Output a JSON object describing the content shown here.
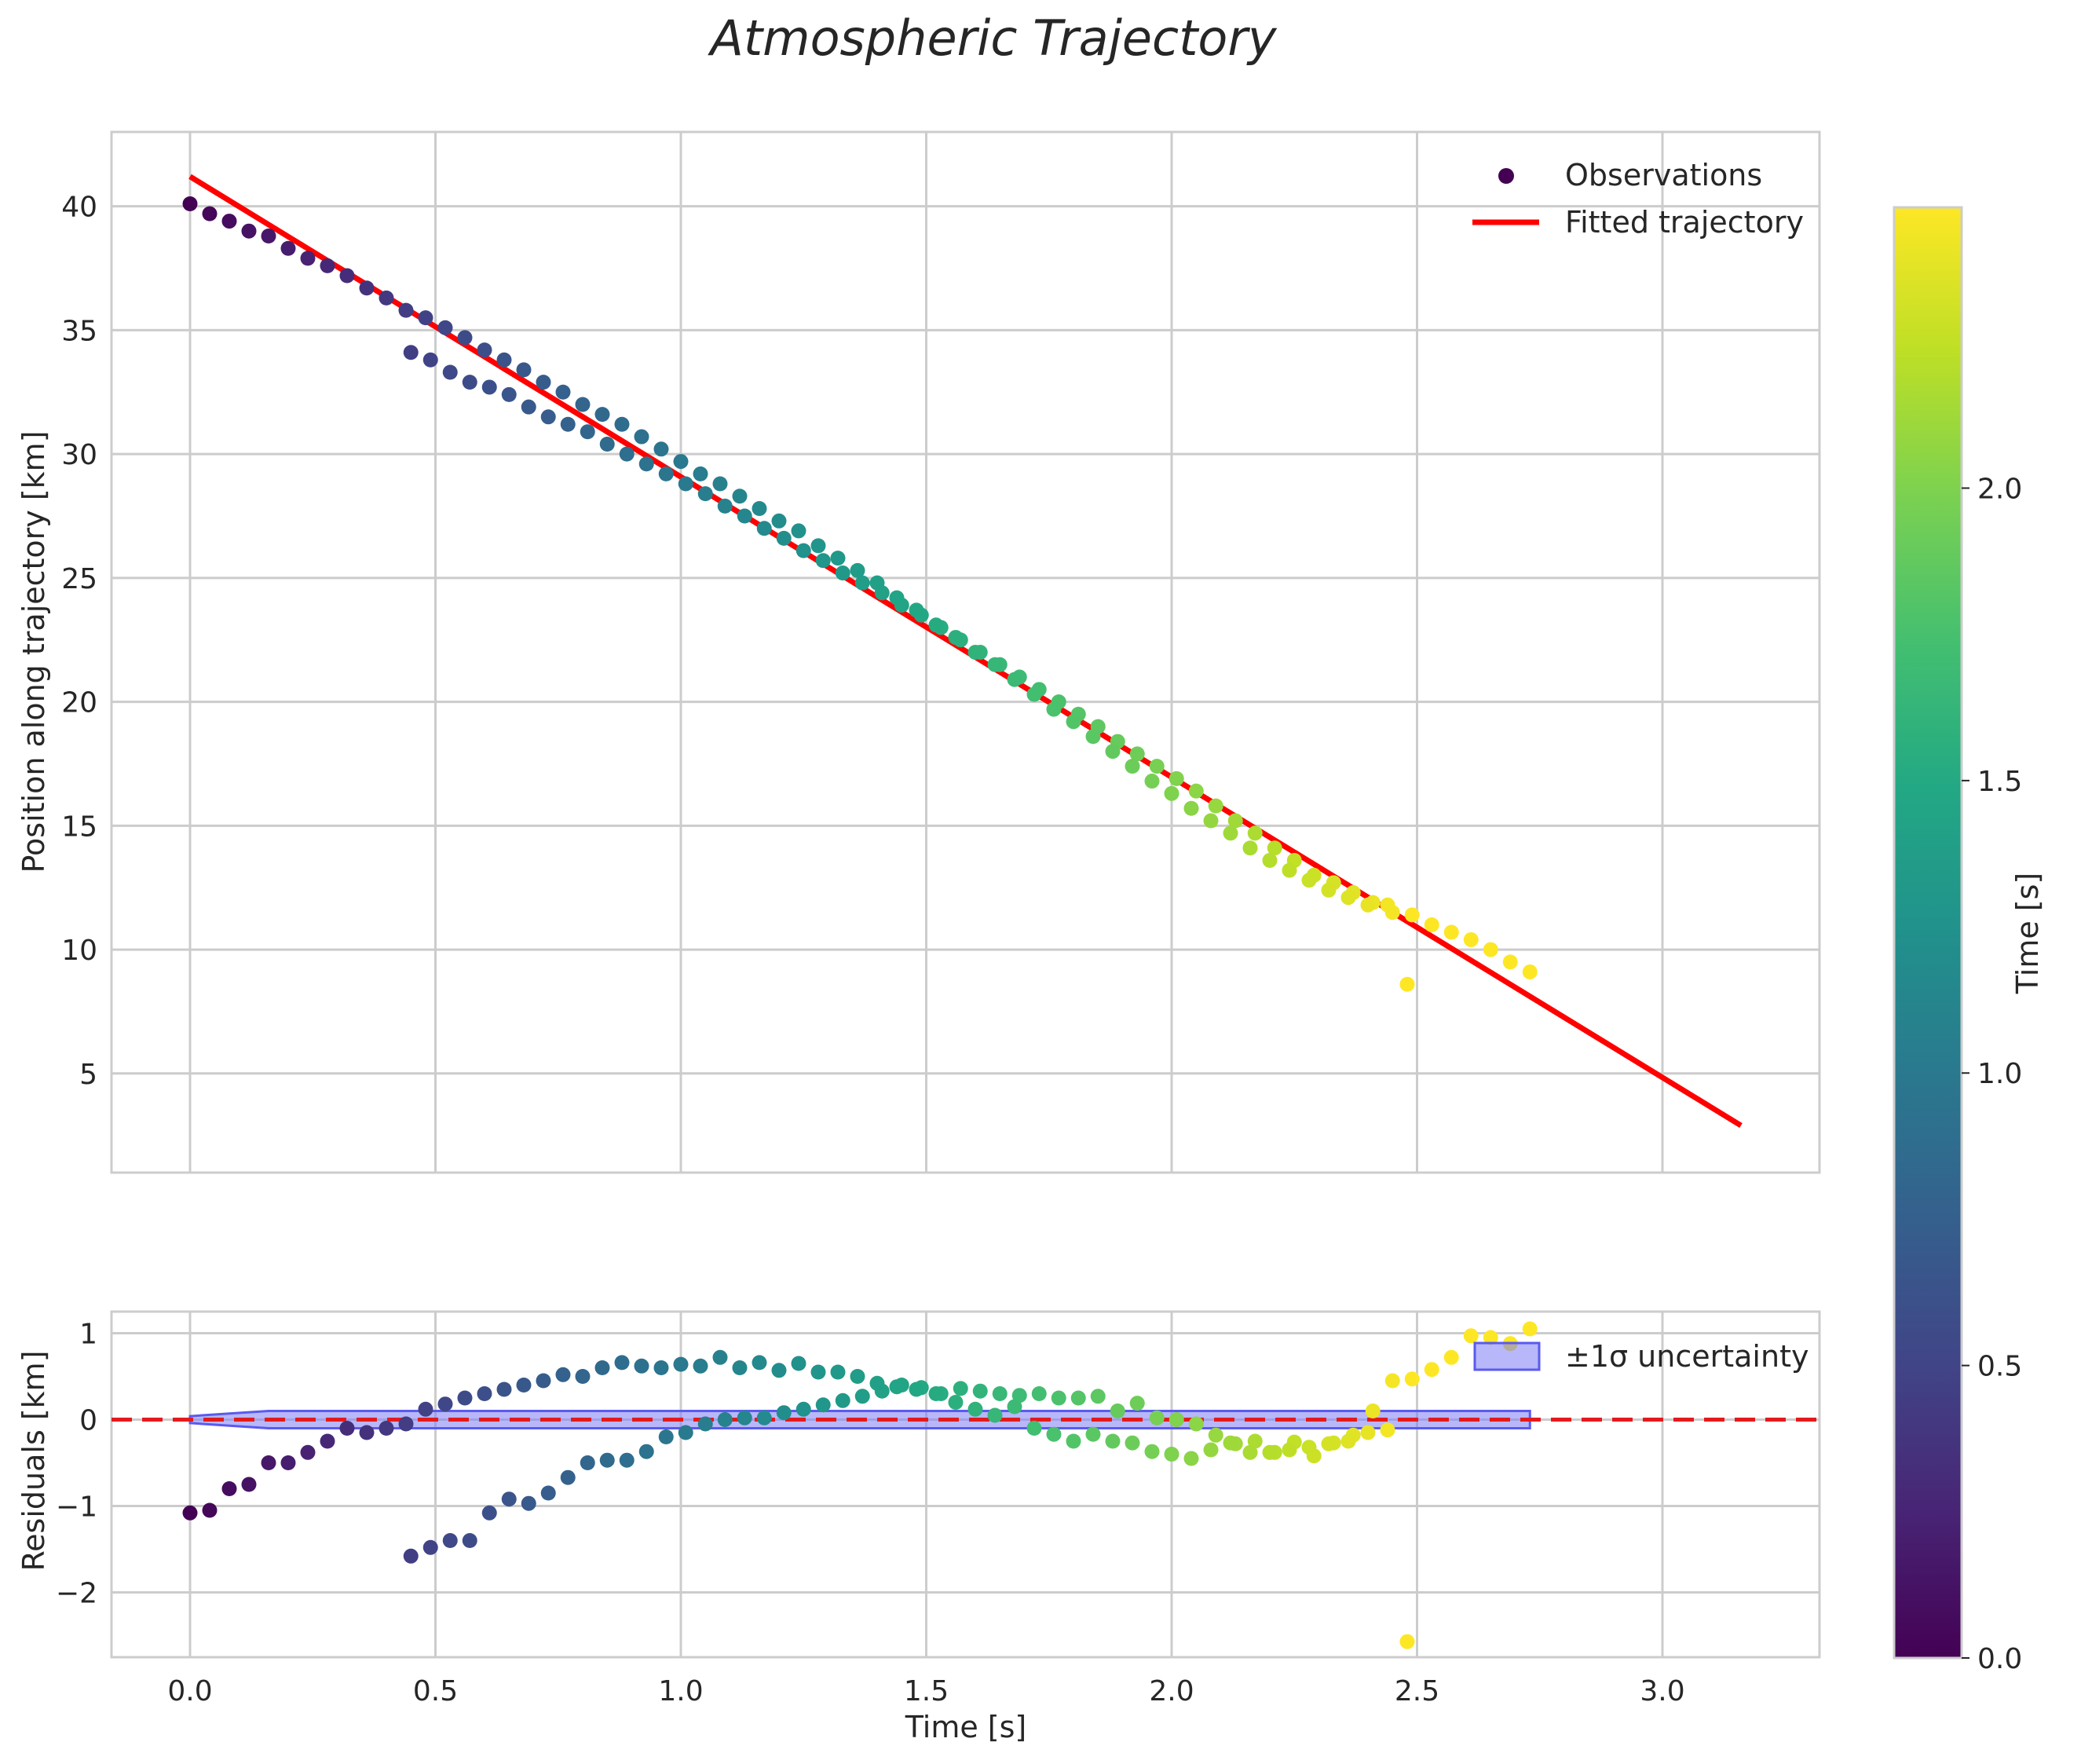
{
  "chart_data": {
    "title": "Atmospheric Trajectory",
    "colormap": "viridis",
    "colors": {
      "fit_line": "#ff0000",
      "zero_line": "#e31a1c",
      "band_fill": "#7b7bf5",
      "band_edge": "#5a5af0",
      "grid": "#cccccc",
      "spine": "#cccccc"
    },
    "xaxis": {
      "label": "Time [s]",
      "range": [
        -0.16,
        3.32
      ],
      "ticks": [
        0.0,
        0.5,
        1.0,
        1.5,
        2.0,
        2.5,
        3.0
      ],
      "tick_labels": [
        "0.0",
        "0.5",
        "1.0",
        "1.5",
        "2.0",
        "2.5",
        "3.0"
      ]
    },
    "top": {
      "type": "scatter",
      "ylabel": "Position along trajectory [km]",
      "ylim": [
        1.0,
        43.0
      ],
      "yticks": [
        5,
        10,
        15,
        20,
        25,
        30,
        35,
        40
      ],
      "ytick_labels": [
        "5",
        "10",
        "15",
        "20",
        "25",
        "30",
        "35",
        "40"
      ],
      "legend": {
        "observations": "Observations",
        "fit": "Fitted trajectory",
        "placement": "top-right"
      },
      "observations": {
        "t": [
          0.0,
          0.04,
          0.08,
          0.12,
          0.16,
          0.2,
          0.24,
          0.28,
          0.32,
          0.36,
          0.4,
          0.44,
          0.45,
          0.49,
          0.53,
          0.57,
          0.61,
          0.65,
          0.69,
          0.73,
          0.77,
          0.81,
          0.85,
          0.89,
          0.93,
          0.97,
          1.01,
          1.05,
          1.09,
          1.13,
          1.17,
          1.21,
          1.25,
          1.29,
          1.33,
          1.37,
          1.41,
          1.45,
          1.49,
          1.53,
          1.57,
          1.61,
          1.65,
          1.69,
          1.73,
          1.77,
          1.81,
          1.85,
          1.89,
          1.93,
          1.97,
          2.01,
          2.05,
          2.09,
          2.13,
          2.17,
          2.21,
          2.25,
          2.29,
          2.33,
          2.37,
          2.41,
          2.45,
          2.48,
          2.49,
          2.53,
          2.57,
          2.61,
          2.65,
          2.69,
          2.73,
          0.48,
          0.52,
          0.56,
          0.6,
          0.64,
          0.68,
          0.72,
          0.76,
          0.8,
          0.84,
          0.88,
          0.92,
          0.96,
          1.0,
          1.04,
          1.08,
          1.12,
          1.16,
          1.2,
          1.24,
          1.28,
          1.32,
          1.36,
          1.4,
          1.44,
          1.48,
          1.52,
          1.56,
          1.6,
          1.64,
          1.68,
          1.72,
          1.76,
          1.8,
          1.84,
          1.88,
          1.92,
          1.96,
          2.0,
          2.04,
          2.08,
          2.12,
          2.16,
          2.2,
          2.24,
          2.28,
          2.32,
          2.36,
          2.4,
          2.44
        ],
        "y": [
          40.1,
          39.7,
          39.4,
          39.0,
          38.8,
          38.3,
          37.9,
          37.6,
          37.2,
          36.7,
          36.3,
          35.8,
          34.1,
          33.8,
          33.3,
          32.9,
          32.7,
          32.4,
          31.9,
          31.5,
          31.2,
          30.9,
          30.4,
          30.0,
          29.6,
          29.2,
          28.8,
          28.4,
          27.9,
          27.5,
          27.0,
          26.6,
          26.1,
          25.7,
          25.2,
          24.8,
          24.4,
          23.9,
          23.5,
          23.0,
          22.5,
          22.0,
          21.5,
          21.0,
          20.5,
          20.0,
          19.5,
          19.0,
          18.4,
          17.9,
          17.4,
          16.9,
          16.4,
          15.8,
          15.2,
          14.7,
          14.1,
          13.6,
          13.0,
          12.7,
          12.3,
          11.9,
          11.5,
          8.6,
          11.4,
          11.0,
          10.7,
          10.4,
          10.0,
          9.5,
          9.1,
          35.5,
          35.1,
          34.7,
          34.2,
          33.8,
          33.4,
          32.9,
          32.5,
          32.0,
          31.6,
          31.2,
          30.7,
          30.2,
          29.7,
          29.2,
          28.8,
          28.3,
          27.8,
          27.3,
          26.9,
          26.3,
          25.8,
          25.3,
          24.8,
          24.2,
          23.7,
          23.1,
          22.6,
          22.0,
          21.5,
          20.9,
          20.3,
          19.7,
          19.2,
          18.6,
          18.0,
          17.4,
          16.8,
          16.3,
          15.7,
          15.2,
          14.7,
          14.1,
          13.6,
          13.2,
          12.8,
          12.4,
          12.1,
          11.8,
          11.8
        ]
      },
      "fit": {
        "t": [
          0.0,
          3.16
        ],
        "y": [
          41.2,
          2.9
        ]
      }
    },
    "bottom": {
      "type": "scatter",
      "ylabel": "Residuals [km]",
      "ylim": [
        -2.75,
        1.25
      ],
      "yticks": [
        -2,
        -1,
        0,
        1
      ],
      "ytick_labels": [
        "−2",
        "−1",
        "0",
        "1"
      ],
      "legend": {
        "band": "±1σ uncertainty",
        "placement": "top-right"
      },
      "band": {
        "t": [
          0.0,
          0.16,
          2.73
        ],
        "upper": [
          0.04,
          0.1,
          0.1
        ],
        "lower": [
          -0.04,
          -0.1,
          -0.1
        ]
      },
      "residuals": {
        "t": [
          0.0,
          0.04,
          0.08,
          0.12,
          0.16,
          0.2,
          0.24,
          0.28,
          0.32,
          0.36,
          0.4,
          0.44,
          0.45,
          0.49,
          0.53,
          0.57,
          0.61,
          0.65,
          0.69,
          0.73,
          0.77,
          0.81,
          0.85,
          0.89,
          0.93,
          0.97,
          1.01,
          1.05,
          1.09,
          1.13,
          1.17,
          1.21,
          1.25,
          1.29,
          1.33,
          1.37,
          1.41,
          1.45,
          1.49,
          1.53,
          1.57,
          1.61,
          1.65,
          1.69,
          1.73,
          1.77,
          1.81,
          1.85,
          1.89,
          1.93,
          1.97,
          2.01,
          2.05,
          2.09,
          2.13,
          2.17,
          2.21,
          2.25,
          2.29,
          2.33,
          2.37,
          2.41,
          2.45,
          2.48,
          2.49,
          2.53,
          2.57,
          2.61,
          2.65,
          2.69,
          2.73,
          0.48,
          0.52,
          0.56,
          0.6,
          0.64,
          0.68,
          0.72,
          0.76,
          0.8,
          0.84,
          0.88,
          0.92,
          0.96,
          1.0,
          1.04,
          1.08,
          1.12,
          1.16,
          1.2,
          1.24,
          1.28,
          1.32,
          1.36,
          1.4,
          1.44,
          1.48,
          1.52,
          1.56,
          1.6,
          1.64,
          1.68,
          1.72,
          1.76,
          1.8,
          1.84,
          1.88,
          1.92,
          1.96,
          2.0,
          2.04,
          2.08,
          2.12,
          2.16,
          2.2,
          2.24,
          2.28,
          2.32,
          2.36,
          2.4,
          2.44
        ],
        "r": [
          -1.08,
          -1.05,
          -0.8,
          -0.75,
          -0.5,
          -0.5,
          -0.38,
          -0.25,
          -0.1,
          -0.15,
          -0.1,
          -0.05,
          -1.58,
          -1.48,
          -1.4,
          -1.4,
          -1.08,
          -0.92,
          -0.97,
          -0.85,
          -0.67,
          -0.5,
          -0.47,
          -0.47,
          -0.37,
          -0.2,
          -0.15,
          -0.05,
          0.0,
          0.02,
          0.02,
          0.08,
          0.12,
          0.17,
          0.22,
          0.27,
          0.33,
          0.4,
          0.37,
          0.3,
          0.36,
          0.33,
          0.3,
          0.28,
          0.3,
          0.25,
          0.25,
          0.27,
          0.1,
          0.19,
          0.02,
          0.0,
          -0.05,
          -0.18,
          -0.28,
          -0.25,
          -0.38,
          -0.26,
          -0.42,
          -0.27,
          -0.18,
          0.1,
          0.45,
          -2.57,
          0.47,
          0.58,
          0.72,
          0.97,
          0.95,
          0.88,
          1.05,
          0.12,
          0.18,
          0.25,
          0.3,
          0.35,
          0.4,
          0.45,
          0.52,
          0.5,
          0.6,
          0.66,
          0.62,
          0.6,
          0.64,
          0.62,
          0.72,
          0.6,
          0.66,
          0.57,
          0.65,
          0.55,
          0.55,
          0.5,
          0.42,
          0.38,
          0.35,
          0.3,
          0.2,
          0.12,
          0.05,
          0.15,
          -0.1,
          -0.17,
          -0.25,
          -0.17,
          -0.25,
          -0.27,
          -0.37,
          -0.4,
          -0.45,
          -0.35,
          -0.27,
          -0.38,
          -0.38,
          -0.35,
          -0.32,
          -0.28,
          -0.25,
          -0.15,
          -0.12
        ]
      }
    },
    "colorbar": {
      "label": "Time [s]",
      "range": [
        0.0,
        2.48
      ],
      "ticks": [
        0.0,
        0.5,
        1.0,
        1.5,
        2.0
      ],
      "tick_labels": [
        "0.0",
        "0.5",
        "1.0",
        "1.5",
        "2.0"
      ]
    }
  }
}
